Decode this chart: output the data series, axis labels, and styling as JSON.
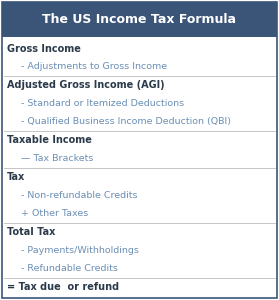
{
  "title": "The US Income Tax Formula",
  "title_bg_color": "#3B5579",
  "title_text_color": "#FFFFFF",
  "border_color": "#3B5579",
  "line_color": "#BBBBBB",
  "bold_color": "#2B3A4A",
  "sub_color": "#6B8FB5",
  "bg_color": "#FFFFFF",
  "fig_w": 2.79,
  "fig_h": 3.0,
  "dpi": 100,
  "rows": [
    {
      "text": "Gross Income",
      "bold": true,
      "indent": 0,
      "prefix": ""
    },
    {
      "text": "Adjustments to Gross Income",
      "bold": false,
      "indent": 1,
      "prefix": "- "
    },
    {
      "text": "Adjusted Gross Income (AGI)",
      "bold": true,
      "indent": 0,
      "prefix": "",
      "line_above": true
    },
    {
      "text": "Standard or Itemized Deductions",
      "bold": false,
      "indent": 1,
      "prefix": "- "
    },
    {
      "text": "Qualified Business Income Deduction (QBI)",
      "bold": false,
      "indent": 1,
      "prefix": "- "
    },
    {
      "text": "Taxable Income",
      "bold": true,
      "indent": 0,
      "prefix": "",
      "line_above": true
    },
    {
      "text": "Tax Brackets",
      "bold": false,
      "indent": 1,
      "prefix": "— "
    },
    {
      "text": "Tax",
      "bold": true,
      "indent": 0,
      "prefix": "",
      "line_above": true
    },
    {
      "text": "Non-refundable Credits",
      "bold": false,
      "indent": 1,
      "prefix": "- "
    },
    {
      "text": "+ Other Taxes",
      "bold": false,
      "indent": 1,
      "prefix": ""
    },
    {
      "text": "Total Tax",
      "bold": true,
      "indent": 0,
      "prefix": "",
      "line_above": true
    },
    {
      "text": "Payments/Withholdings",
      "bold": false,
      "indent": 1,
      "prefix": "- "
    },
    {
      "text": "Refundable Credits",
      "bold": false,
      "indent": 1,
      "prefix": "- "
    },
    {
      "text": "= Tax due  or refund",
      "bold": true,
      "indent": 0,
      "prefix": "",
      "line_above": true
    }
  ]
}
